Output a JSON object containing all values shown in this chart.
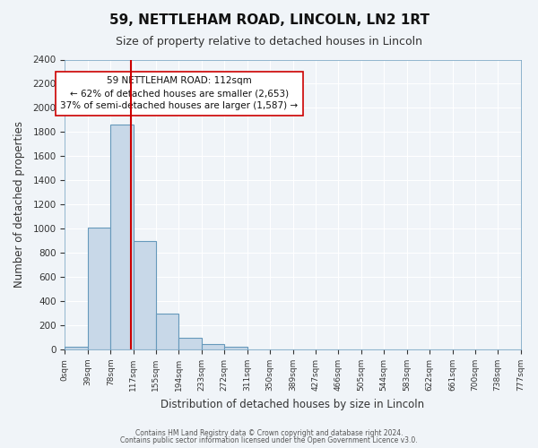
{
  "title": "59, NETTLEHAM ROAD, LINCOLN, LN2 1RT",
  "subtitle": "Size of property relative to detached houses in Lincoln",
  "xlabel": "Distribution of detached houses by size in Lincoln",
  "ylabel": "Number of detached properties",
  "bar_color": "#c8d8e8",
  "bar_edge_color": "#6699bb",
  "bg_color": "#f0f4f8",
  "grid_color": "#ffffff",
  "vline_x": 112,
  "vline_color": "#cc0000",
  "annotation_title": "59 NETTLEHAM ROAD: 112sqm",
  "annotation_line1": "← 62% of detached houses are smaller (2,653)",
  "annotation_line2": "37% of semi-detached houses are larger (1,587) →",
  "annotation_box_color": "#ffffff",
  "annotation_box_edge": "#cc0000",
  "footnote1": "Contains HM Land Registry data © Crown copyright and database right 2024.",
  "footnote2": "Contains public sector information licensed under the Open Government Licence v3.0.",
  "bin_edges": [
    0,
    39,
    78,
    117,
    155,
    194,
    233,
    272,
    311,
    350,
    389,
    427,
    466,
    505,
    544,
    583,
    622,
    661,
    700,
    738,
    777
  ],
  "bin_labels": [
    "0sqm",
    "39sqm",
    "78sqm",
    "117sqm",
    "155sqm",
    "194sqm",
    "233sqm",
    "272sqm",
    "311sqm",
    "350sqm",
    "389sqm",
    "427sqm",
    "466sqm",
    "505sqm",
    "544sqm",
    "583sqm",
    "622sqm",
    "661sqm",
    "700sqm",
    "738sqm",
    "777sqm"
  ],
  "bar_heights": [
    25,
    1010,
    1860,
    900,
    300,
    100,
    45,
    25,
    0,
    0,
    0,
    0,
    0,
    0,
    0,
    0,
    0,
    0,
    0,
    0
  ],
  "ylim": [
    0,
    2400
  ],
  "yticks": [
    0,
    200,
    400,
    600,
    800,
    1000,
    1200,
    1400,
    1600,
    1800,
    2000,
    2200,
    2400
  ]
}
